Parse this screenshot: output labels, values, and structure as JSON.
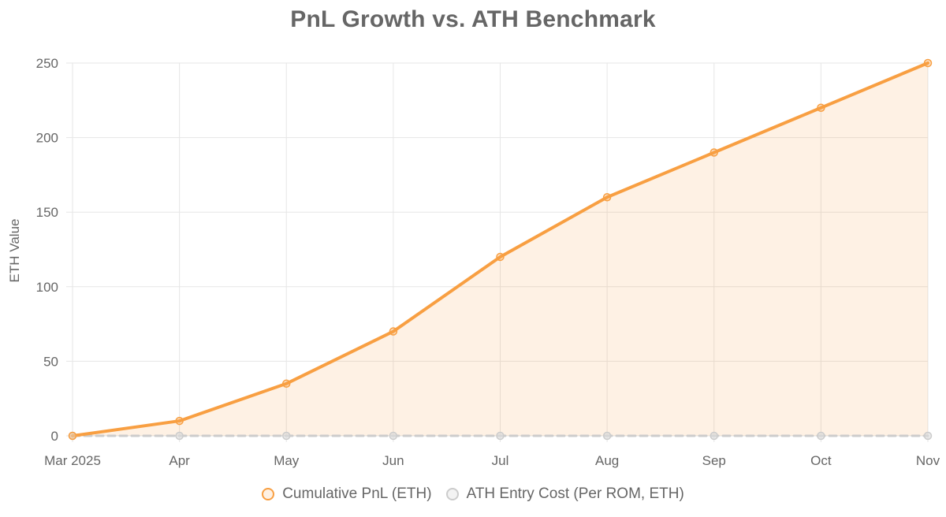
{
  "chart_data": {
    "type": "line",
    "title": "PnL Growth vs. ATH Benchmark",
    "xlabel": "",
    "ylabel": "ETH Value",
    "categories": [
      "Mar 2025",
      "Apr",
      "May",
      "Jun",
      "Jul",
      "Aug",
      "Sep",
      "Oct",
      "Nov"
    ],
    "ylim": [
      0,
      250
    ],
    "yticks": [
      0,
      50,
      100,
      150,
      200,
      250
    ],
    "grid": true,
    "legend_position": "bottom",
    "series": [
      {
        "name": "Cumulative PnL (ETH)",
        "values": [
          0,
          10,
          35,
          70,
          120,
          160,
          190,
          220,
          250
        ],
        "color": "#f89f42",
        "fill": "rgba(248,159,66,0.14)",
        "style": "solid"
      },
      {
        "name": "ATH Entry Cost (Per ROM, ETH)",
        "values": [
          0,
          0,
          0,
          0,
          0,
          0,
          0,
          0,
          0
        ],
        "color": "#cccccc",
        "fill": "rgba(220,220,220,0.35)",
        "style": "dashed"
      }
    ]
  }
}
